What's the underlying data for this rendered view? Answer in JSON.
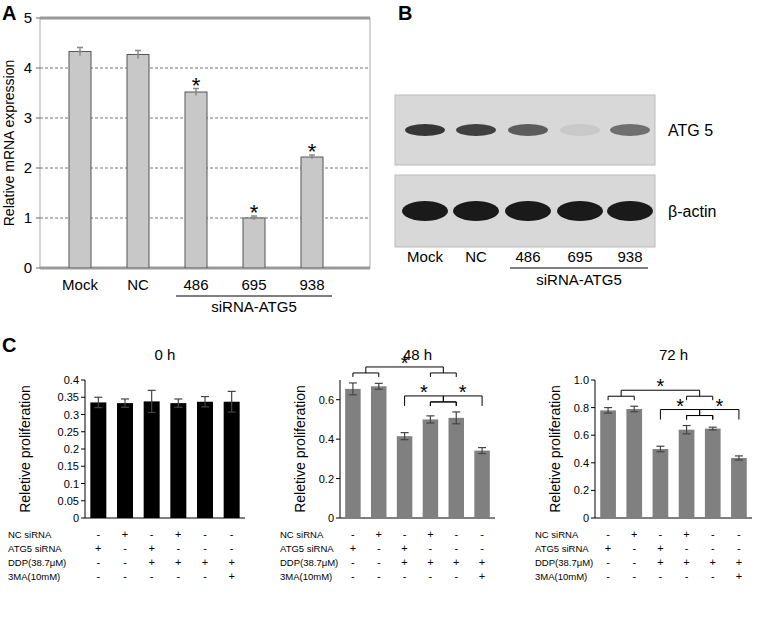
{
  "panel_labels": [
    "A",
    "B",
    "C"
  ],
  "chart_data": [
    {
      "type": "bar",
      "y_label": "Relative mRNA expression",
      "categories": [
        "Mock",
        "NC",
        "486",
        "695",
        "938"
      ],
      "values": [
        4.33,
        4.27,
        3.52,
        1.0,
        2.22
      ],
      "errors": [
        0.08,
        0.08,
        0.07,
        0.04,
        0.04
      ],
      "significance": [
        null,
        null,
        "*",
        "*",
        "*"
      ],
      "category_group": {
        "label": "siRNA-ATG5",
        "members": [
          "486",
          "695",
          "938"
        ]
      },
      "color": "#c8c8c8",
      "ylim": [
        0,
        5
      ],
      "yticks": [
        0,
        1,
        2,
        3,
        4,
        5
      ],
      "grid": true
    },
    {
      "type": "bar",
      "title": "0 h",
      "y_label": "Reletive proliferation",
      "values": [
        0.335,
        0.333,
        0.338,
        0.333,
        0.337,
        0.337
      ],
      "errors": [
        0.015,
        0.012,
        0.032,
        0.012,
        0.015,
        0.03
      ],
      "conditions": [
        {
          "name": "NC siRNA",
          "signs": [
            "-",
            "+",
            "-",
            "+",
            "-",
            "-"
          ]
        },
        {
          "name": "ATG5 siRNA",
          "signs": [
            "+",
            "-",
            "+",
            "-",
            "-",
            "-"
          ]
        },
        {
          "name": "DDP(38.7μM)",
          "signs": [
            "-",
            "-",
            "+",
            "+",
            "+",
            "+"
          ]
        },
        {
          "name": "3MA(10mM)",
          "signs": [
            "-",
            "-",
            "-",
            "-",
            "-",
            "+"
          ]
        }
      ],
      "comparisons": [],
      "color": "#000000",
      "ylim": [
        0,
        0.4
      ],
      "yticks": [
        0,
        0.05,
        0.1,
        0.15,
        0.2,
        0.25,
        0.3,
        0.35,
        0.4
      ]
    },
    {
      "type": "bar",
      "title": "48 h",
      "y_label": "Reletive proliferation",
      "values": [
        0.655,
        0.668,
        0.415,
        0.5,
        0.508,
        0.342
      ],
      "errors": [
        0.03,
        0.015,
        0.018,
        0.018,
        0.03,
        0.015
      ],
      "conditions": [
        {
          "name": "NC siRNA",
          "signs": [
            "-",
            "+",
            "-",
            "+",
            "-",
            "-"
          ]
        },
        {
          "name": "ATG5 siRNA",
          "signs": [
            "+",
            "-",
            "+",
            "-",
            "-",
            "-"
          ]
        },
        {
          "name": "DDP(38.7μM)",
          "signs": [
            "-",
            "-",
            "+",
            "+",
            "+",
            "+"
          ]
        },
        {
          "name": "3MA(10mM)",
          "signs": [
            "-",
            "-",
            "-",
            "-",
            "-",
            "+"
          ]
        }
      ],
      "comparisons": [
        {
          "a": [
            0,
            1
          ],
          "b": [
            3,
            4
          ],
          "label": "*"
        },
        {
          "a": [
            2
          ],
          "b": [
            3,
            4
          ],
          "label": "*"
        },
        {
          "a": [
            3,
            4
          ],
          "b": [
            5
          ],
          "label": "*"
        }
      ],
      "color": "#808080",
      "ylim": [
        0,
        0.7
      ],
      "yticks": [
        0,
        0.2,
        0.4,
        0.6
      ]
    },
    {
      "type": "bar",
      "title": "72 h",
      "y_label": "Reletive proliferation",
      "values": [
        0.78,
        0.79,
        0.5,
        0.64,
        0.648,
        0.435
      ],
      "errors": [
        0.02,
        0.02,
        0.02,
        0.03,
        0.01,
        0.015
      ],
      "conditions": [
        {
          "name": "NC siRNA",
          "signs": [
            "-",
            "+",
            "-",
            "+",
            "-",
            "-"
          ]
        },
        {
          "name": "ATG5 siRNA",
          "signs": [
            "+",
            "-",
            "+",
            "-",
            "-",
            "-"
          ]
        },
        {
          "name": "DDP(38.7μM)",
          "signs": [
            "-",
            "-",
            "+",
            "+",
            "+",
            "+"
          ]
        },
        {
          "name": "3MA(10mM)",
          "signs": [
            "-",
            "-",
            "-",
            "-",
            "-",
            "+"
          ]
        }
      ],
      "comparisons": [
        {
          "a": [
            0,
            1
          ],
          "b": [
            3,
            4
          ],
          "label": "*"
        },
        {
          "a": [
            2
          ],
          "b": [
            3,
            4
          ],
          "label": "*"
        },
        {
          "a": [
            3,
            4
          ],
          "b": [
            5
          ],
          "label": "*"
        }
      ],
      "color": "#808080",
      "ylim": [
        0,
        1.0
      ],
      "yticks": [
        0,
        0.2,
        0.4,
        0.6,
        0.8,
        {
          "value": 1,
          "label": "1.0"
        }
      ]
    }
  ],
  "blot": {
    "lanes": [
      "Mock",
      "NC",
      "486",
      "695",
      "938"
    ],
    "lane_group": {
      "label": "siRNA-ATG5",
      "members": [
        "486",
        "695",
        "938"
      ]
    },
    "bands": [
      {
        "name": "ATG 5",
        "intensities": [
          0.85,
          0.8,
          0.65,
          0.08,
          0.55
        ]
      },
      {
        "name": "β-actin",
        "intensities": [
          1.0,
          1.0,
          1.0,
          1.0,
          1.0
        ]
      }
    ]
  }
}
